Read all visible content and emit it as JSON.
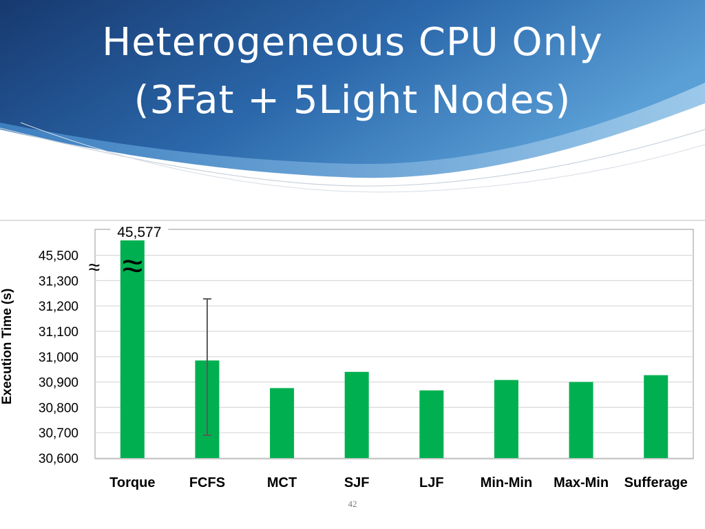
{
  "slide": {
    "title_line1": "Heterogeneous CPU Only",
    "title_line2": "(3Fat + 5Light Nodes)",
    "page_number": "42"
  },
  "colors": {
    "bar": "#00b050",
    "header_dark": "#1c3f7a",
    "header_light": "#4a90cf",
    "grid": "#d9d9d9",
    "error_bar": "#595959"
  },
  "chart_data": {
    "type": "bar",
    "ylabel": "Execution Time (s)",
    "categories": [
      "Torque",
      "FCFS",
      "MCT",
      "SJF",
      "LJF",
      "Min-Min",
      "Max-Min",
      "Sufferage"
    ],
    "values": [
      45577,
      30985,
      30876,
      30940,
      30867,
      30908,
      30900,
      30927
    ],
    "error_bars": [
      {
        "category": "FCFS",
        "low": 30690,
        "high": 31228
      }
    ],
    "data_labels": [
      {
        "category": "Torque",
        "text": "45,577"
      }
    ],
    "axis_break": {
      "after": 31300,
      "resume": 45500,
      "symbol": "≈"
    },
    "yticks": [
      "30,600",
      "30,700",
      "30,800",
      "30,900",
      "31,000",
      "31,100",
      "31,200",
      "31,300",
      "45,500"
    ],
    "ylim": [
      30600,
      45577
    ],
    "grid": true,
    "legend": "none"
  }
}
